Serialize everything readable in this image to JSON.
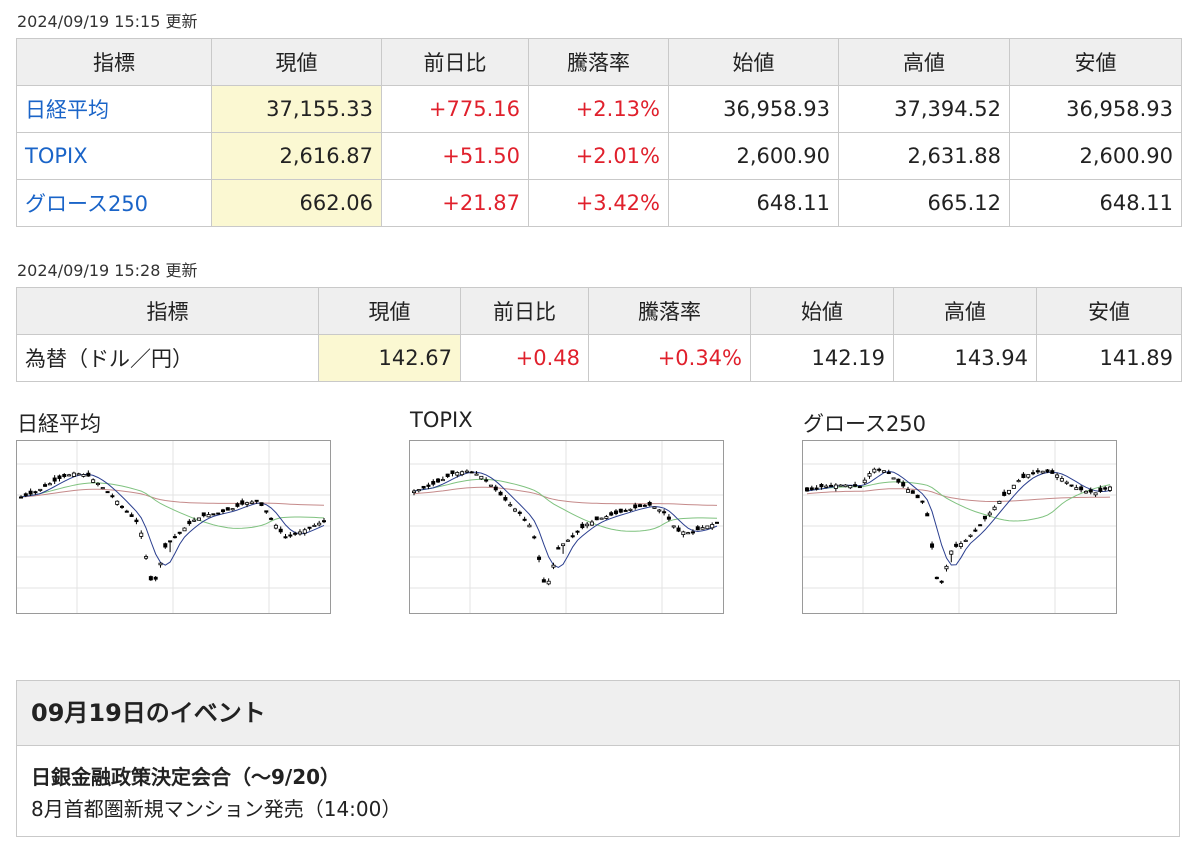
{
  "indices": {
    "updated": "2024/09/19 15:15 更新",
    "headers": [
      "指標",
      "現値",
      "前日比",
      "騰落率",
      "始値",
      "高値",
      "安値"
    ],
    "rows": [
      {
        "name": "日経平均",
        "current": "37,155.33",
        "change": "+775.16",
        "rate": "+2.13%",
        "open": "36,958.93",
        "high": "37,394.52",
        "low": "36,958.93"
      },
      {
        "name": "TOPIX",
        "current": "2,616.87",
        "change": "+51.50",
        "rate": "+2.01%",
        "open": "2,600.90",
        "high": "2,631.88",
        "low": "2,600.90"
      },
      {
        "name": "グロース250",
        "current": "662.06",
        "change": "+21.87",
        "rate": "+3.42%",
        "open": "648.11",
        "high": "665.12",
        "low": "648.11"
      }
    ]
  },
  "fx": {
    "updated": "2024/09/19 15:28 更新",
    "headers": [
      "指標",
      "現値",
      "前日比",
      "騰落率",
      "始値",
      "高値",
      "安値"
    ],
    "row": {
      "name": "為替（ドル／円）",
      "current": "142.67",
      "change": "+0.48",
      "rate": "+0.34%",
      "open": "142.19",
      "high": "143.94",
      "low": "141.89"
    }
  },
  "charts": {
    "nikkei": {
      "title": "日経平均"
    },
    "topix": {
      "title": "TOPIX"
    },
    "growth": {
      "title": "グロース250"
    }
  },
  "events": {
    "heading": "09月19日のイベント",
    "items": [
      "日銀金融政策決定会合（〜9/20）",
      "8月首都圏新規マンション発売（14:00）"
    ]
  },
  "colors": {
    "up": "#e0202c",
    "link": "#1a64c8",
    "current_bg": "#fbf8d2",
    "header_bg": "#efefef",
    "ma_short": "#2b3f8f",
    "ma_mid": "#7fc27f",
    "ma_long": "#c58a8a"
  }
}
